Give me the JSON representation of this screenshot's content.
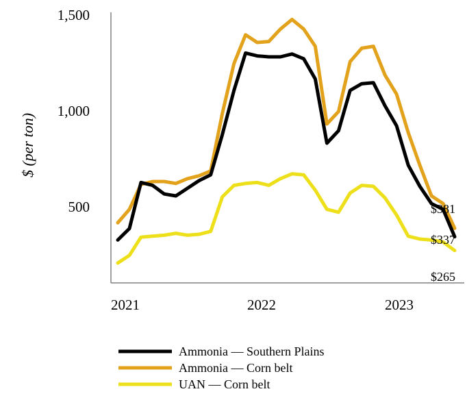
{
  "chart_data": {
    "type": "line",
    "title": "",
    "xlabel": "",
    "ylabel": "$ (per ton)",
    "ylim": [
      160,
      1500
    ],
    "x_start": 2021.0,
    "x_step": 0.0833333,
    "x_ticks": [
      "2021",
      "2022",
      "2023"
    ],
    "y_ticks": [
      {
        "value": 500,
        "label": "500"
      },
      {
        "value": 1000,
        "label": "1,000"
      },
      {
        "value": 1500,
        "label": "1,500"
      }
    ],
    "series": [
      {
        "name": "Ammonia — Southern Plains",
        "color": "#000000",
        "values": [
          320,
          380,
          620,
          605,
          560,
          550,
          590,
          630,
          660,
          870,
          1100,
          1295,
          1280,
          1275,
          1275,
          1290,
          1265,
          1160,
          825,
          890,
          1100,
          1135,
          1140,
          1020,
          915,
          710,
          600,
          510,
          480,
          337
        ],
        "end_label": "$337"
      },
      {
        "name": "Ammonia — Corn belt",
        "color": "#E2A21C",
        "values": [
          410,
          480,
          610,
          625,
          625,
          615,
          640,
          655,
          680,
          980,
          1240,
          1390,
          1350,
          1355,
          1420,
          1470,
          1420,
          1330,
          925,
          990,
          1250,
          1320,
          1330,
          1180,
          1080,
          880,
          710,
          550,
          510,
          381
        ],
        "end_label": "$381"
      },
      {
        "name": "UAN — Corn belt",
        "color": "#EDE01A",
        "values": [
          200,
          240,
          335,
          340,
          345,
          355,
          345,
          350,
          365,
          545,
          605,
          615,
          620,
          605,
          640,
          665,
          660,
          580,
          480,
          465,
          565,
          605,
          600,
          540,
          450,
          340,
          325,
          320,
          310,
          265
        ],
        "end_label": "$265"
      }
    ]
  }
}
